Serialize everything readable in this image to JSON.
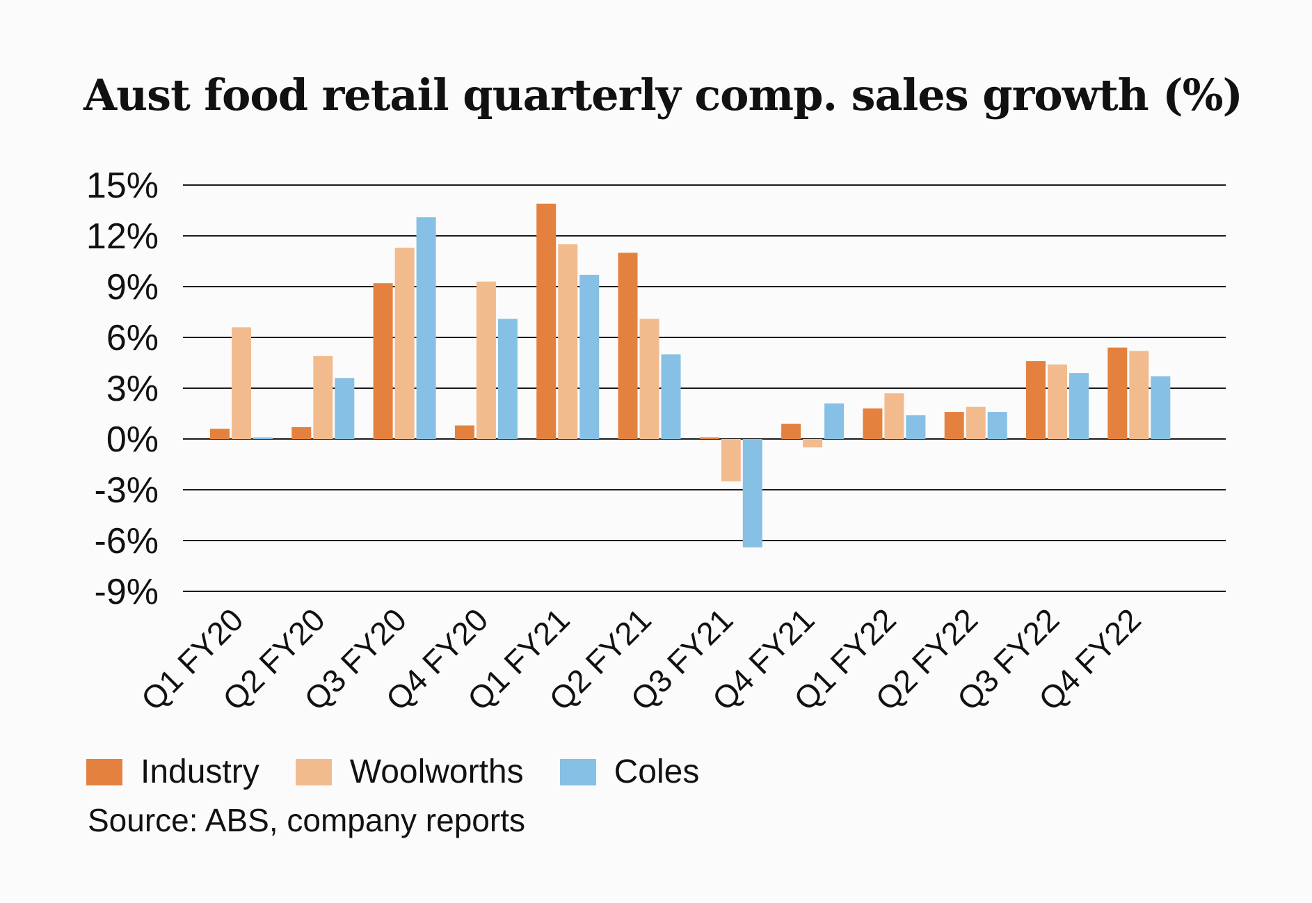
{
  "chart_data": {
    "type": "bar",
    "title": "Aust food retail quarterly comp. sales growth (%)",
    "categories": [
      "Q1 FY20",
      "Q2 FY20",
      "Q3 FY20",
      "Q4 FY20",
      "Q1 FY21",
      "Q2 FY21",
      "Q3 FY21",
      "Q4 FY21",
      "Q1 FY22",
      "Q2 FY22",
      "Q3 FY22",
      "Q4 FY22"
    ],
    "series": [
      {
        "name": "Industry",
        "color": "#e4813f",
        "values": [
          0.6,
          0.7,
          9.2,
          0.8,
          13.9,
          11.0,
          0.1,
          0.9,
          1.8,
          1.6,
          4.6,
          5.4
        ]
      },
      {
        "name": "Woolworths",
        "color": "#f2bb8e",
        "values": [
          6.6,
          4.9,
          11.3,
          9.3,
          11.5,
          7.1,
          -2.5,
          -0.5,
          2.7,
          1.9,
          4.4,
          5.2
        ]
      },
      {
        "name": "Coles",
        "color": "#86c0e4",
        "values": [
          0.1,
          3.6,
          13.1,
          7.1,
          9.7,
          5.0,
          -6.4,
          2.1,
          1.4,
          1.6,
          3.9,
          3.7
        ]
      }
    ],
    "yticks": [
      "15%",
      "12%",
      "9%",
      "6%",
      "3%",
      "0%",
      "-3%",
      "-6%",
      "-9%"
    ],
    "ytick_values": [
      15,
      12,
      9,
      6,
      3,
      0,
      -3,
      -6,
      -9
    ],
    "ylim": [
      -9,
      15
    ],
    "grid": true,
    "legend": "bottom-left",
    "source": "Source: ABS, company reports"
  }
}
